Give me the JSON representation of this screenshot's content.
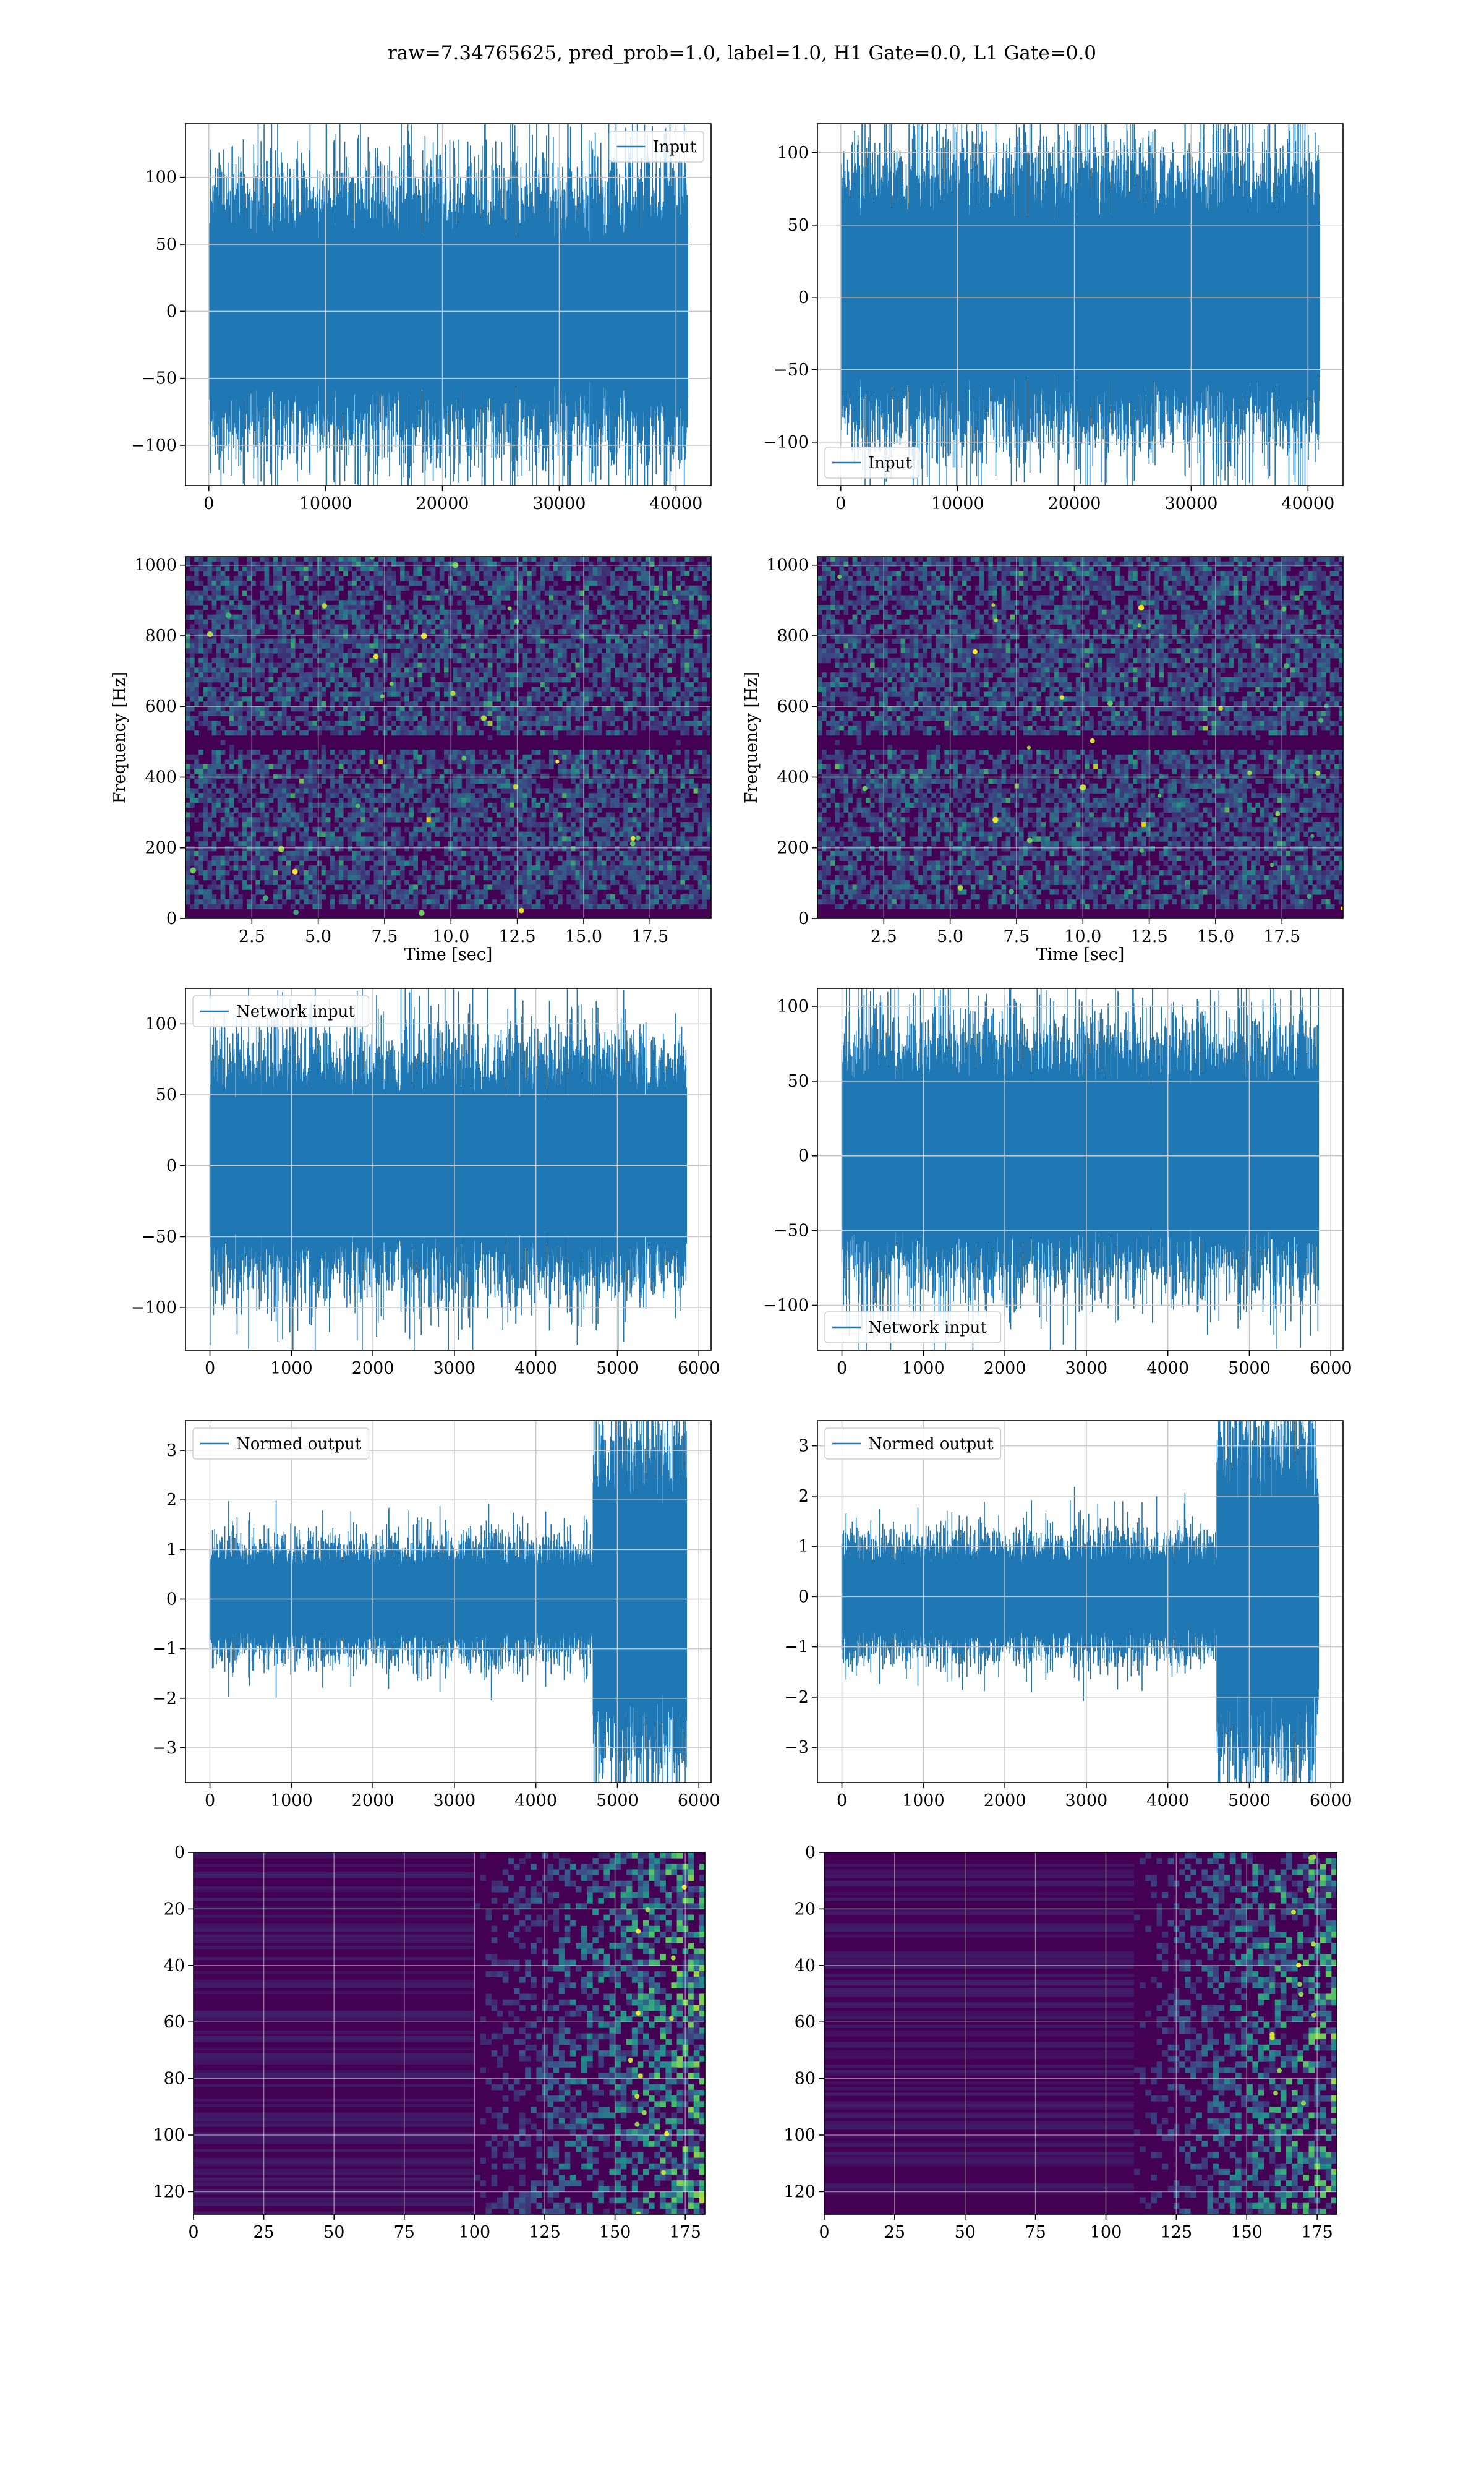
{
  "figure": {
    "title": "raw=7.34765625, pred_prob=1.0, label=1.0, H1 Gate=0.0, L1 Gate=0.0"
  },
  "colors": {
    "line": "#1f77b4",
    "grid": "#c8c8c8",
    "axes": "#000000",
    "heatmap_bg": "#440154",
    "viridis": [
      "#440154",
      "#3b528b",
      "#21918c",
      "#5ec962",
      "#fde725"
    ]
  },
  "chart_data": [
    {
      "id": "r1c1",
      "type": "line",
      "series": [
        {
          "name": "Input",
          "pattern": "noise",
          "amplitude": 95,
          "n": 41000
        }
      ],
      "xlim": [
        -2000,
        43000
      ],
      "ylim": [
        -130,
        140
      ],
      "xticks": [
        0,
        10000,
        20000,
        30000,
        40000
      ],
      "xtick_labels": [
        "0",
        "10000",
        "20000",
        "30000",
        "40000"
      ],
      "yticks": [
        -100,
        -50,
        0,
        50,
        100
      ],
      "ytick_labels": [
        "−100",
        "−50",
        "0",
        "50",
        "100"
      ],
      "legend": "upper right",
      "grid": true,
      "xlabel": "",
      "ylabel": ""
    },
    {
      "id": "r1c2",
      "type": "line",
      "series": [
        {
          "name": "Input",
          "pattern": "noise",
          "amplitude": 92,
          "n": 41000
        }
      ],
      "xlim": [
        -2000,
        43000
      ],
      "ylim": [
        -130,
        120
      ],
      "xticks": [
        0,
        10000,
        20000,
        30000,
        40000
      ],
      "xtick_labels": [
        "0",
        "10000",
        "20000",
        "30000",
        "40000"
      ],
      "yticks": [
        -100,
        -50,
        0,
        50,
        100
      ],
      "ytick_labels": [
        "−100",
        "−50",
        "0",
        "50",
        "100"
      ],
      "legend": "lower left",
      "grid": true,
      "xlabel": "",
      "ylabel": ""
    },
    {
      "id": "r2c1",
      "type": "heatmap",
      "xlim": [
        0,
        19.8
      ],
      "ylim": [
        0,
        1024
      ],
      "xticks": [
        2.5,
        5.0,
        7.5,
        10.0,
        12.5,
        15.0,
        17.5
      ],
      "xtick_labels": [
        "2.5",
        "5.0",
        "7.5",
        "10.0",
        "12.5",
        "15.0",
        "17.5"
      ],
      "yticks": [
        0,
        200,
        400,
        600,
        800,
        1000
      ],
      "ytick_labels": [
        "0",
        "200",
        "400",
        "600",
        "800",
        "1000"
      ],
      "xlabel": "Time [sec]",
      "ylabel": "Frequency [Hz]",
      "grid": true,
      "pattern": "spectrogram"
    },
    {
      "id": "r2c2",
      "type": "heatmap",
      "xlim": [
        0,
        19.8
      ],
      "ylim": [
        0,
        1024
      ],
      "xticks": [
        2.5,
        5.0,
        7.5,
        10.0,
        12.5,
        15.0,
        17.5
      ],
      "xtick_labels": [
        "2.5",
        "5.0",
        "7.5",
        "10.0",
        "12.5",
        "15.0",
        "17.5"
      ],
      "yticks": [
        0,
        200,
        400,
        600,
        800,
        1000
      ],
      "ytick_labels": [
        "0",
        "200",
        "400",
        "600",
        "800",
        "1000"
      ],
      "xlabel": "Time [sec]",
      "ylabel": "Frequency [Hz]",
      "grid": true,
      "pattern": "spectrogram"
    },
    {
      "id": "r3c1",
      "type": "line",
      "series": [
        {
          "name": "Network input",
          "pattern": "noise",
          "amplitude": 80,
          "n": 5850
        }
      ],
      "xlim": [
        -300,
        6150
      ],
      "ylim": [
        -130,
        125
      ],
      "xticks": [
        0,
        1000,
        2000,
        3000,
        4000,
        5000,
        6000
      ],
      "xtick_labels": [
        "0",
        "1000",
        "2000",
        "3000",
        "4000",
        "5000",
        "6000"
      ],
      "yticks": [
        -100,
        -50,
        0,
        50,
        100
      ],
      "ytick_labels": [
        "−100",
        "−50",
        "0",
        "50",
        "100"
      ],
      "legend": "upper left",
      "grid": true,
      "xlabel": "",
      "ylabel": ""
    },
    {
      "id": "r3c2",
      "type": "line",
      "series": [
        {
          "name": "Network input",
          "pattern": "noise",
          "amplitude": 80,
          "n": 5850
        }
      ],
      "xlim": [
        -300,
        6150
      ],
      "ylim": [
        -130,
        112
      ],
      "xticks": [
        0,
        1000,
        2000,
        3000,
        4000,
        5000,
        6000
      ],
      "xtick_labels": [
        "0",
        "1000",
        "2000",
        "3000",
        "4000",
        "5000",
        "6000"
      ],
      "yticks": [
        -100,
        -50,
        0,
        50,
        100
      ],
      "ytick_labels": [
        "−100",
        "−50",
        "0",
        "50",
        "100"
      ],
      "legend": "lower left",
      "grid": true,
      "xlabel": "",
      "ylabel": ""
    },
    {
      "id": "r4c1",
      "type": "line",
      "series": [
        {
          "name": "Normed output",
          "pattern": "burst",
          "amplitude": 1.1,
          "burst_start": 4700,
          "burst_amplitude": 3.2,
          "n": 5850
        }
      ],
      "xlim": [
        -300,
        6150
      ],
      "ylim": [
        -3.7,
        3.6
      ],
      "xticks": [
        0,
        1000,
        2000,
        3000,
        4000,
        5000,
        6000
      ],
      "xtick_labels": [
        "0",
        "1000",
        "2000",
        "3000",
        "4000",
        "5000",
        "6000"
      ],
      "yticks": [
        -3,
        -2,
        -1,
        0,
        1,
        2,
        3
      ],
      "ytick_labels": [
        "−3",
        "−2",
        "−1",
        "0",
        "1",
        "2",
        "3"
      ],
      "legend": "upper left",
      "grid": true,
      "xlabel": "",
      "ylabel": ""
    },
    {
      "id": "r4c2",
      "type": "line",
      "series": [
        {
          "name": "Normed output",
          "pattern": "burst",
          "amplitude": 1.1,
          "burst_start": 4600,
          "burst_amplitude": 3.2,
          "n": 5850
        }
      ],
      "xlim": [
        -300,
        6150
      ],
      "ylim": [
        -3.7,
        3.5
      ],
      "xticks": [
        0,
        1000,
        2000,
        3000,
        4000,
        5000,
        6000
      ],
      "xtick_labels": [
        "0",
        "1000",
        "2000",
        "3000",
        "4000",
        "5000",
        "6000"
      ],
      "yticks": [
        -3,
        -2,
        -1,
        0,
        1,
        2,
        3
      ],
      "ytick_labels": [
        "−3",
        "−2",
        "−1",
        "0",
        "1",
        "2",
        "3"
      ],
      "legend": "upper left",
      "grid": true,
      "xlabel": "",
      "ylabel": ""
    },
    {
      "id": "r5c1",
      "type": "heatmap",
      "xlim": [
        0,
        182
      ],
      "ylim": [
        128,
        0
      ],
      "xticks": [
        0,
        25,
        50,
        75,
        100,
        125,
        150,
        175
      ],
      "xtick_labels": [
        "0",
        "25",
        "50",
        "75",
        "100",
        "125",
        "150",
        "175"
      ],
      "yticks": [
        0,
        20,
        40,
        60,
        80,
        100,
        120
      ],
      "ytick_labels": [
        "0",
        "20",
        "40",
        "60",
        "80",
        "100",
        "120"
      ],
      "xlabel": "",
      "ylabel": "",
      "grid": true,
      "pattern": "feature_map",
      "activity_start": 100
    },
    {
      "id": "r5c2",
      "type": "heatmap",
      "xlim": [
        0,
        182
      ],
      "ylim": [
        128,
        0
      ],
      "xticks": [
        0,
        25,
        50,
        75,
        100,
        125,
        150,
        175
      ],
      "xtick_labels": [
        "0",
        "25",
        "50",
        "75",
        "100",
        "125",
        "150",
        "175"
      ],
      "yticks": [
        0,
        20,
        40,
        60,
        80,
        100,
        120
      ],
      "ytick_labels": [
        "0",
        "20",
        "40",
        "60",
        "80",
        "100",
        "120"
      ],
      "xlabel": "",
      "ylabel": "",
      "grid": true,
      "pattern": "feature_map",
      "activity_start": 110
    }
  ]
}
